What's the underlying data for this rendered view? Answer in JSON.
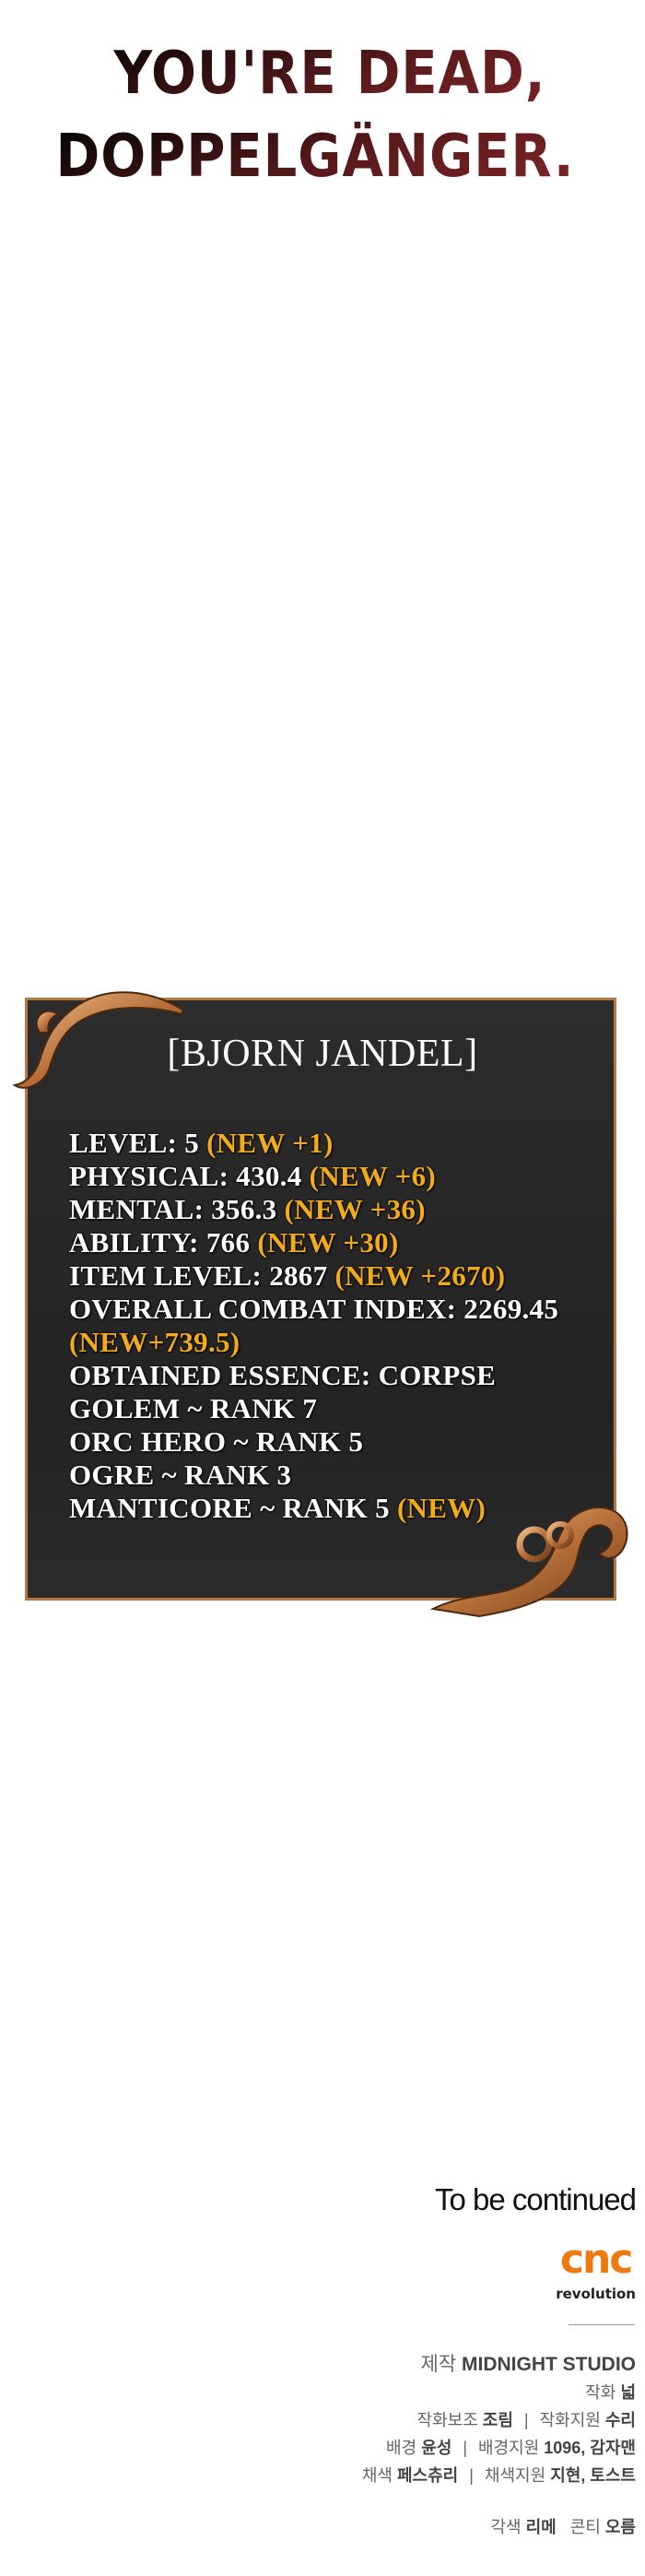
{
  "title": {
    "line1": "YOU'RE DEAD,",
    "line2": "DOPPELGÄNGER."
  },
  "status_window": {
    "name": "[BJORN JANDEL]",
    "lines": [
      {
        "text": "LEVEL: 5 ",
        "new": "(NEW +1)"
      },
      {
        "text": "PHYSICAL: 430.4 ",
        "new": "(NEW +6)"
      },
      {
        "text": "MENTAL: 356.3 ",
        "new": "(NEW +36)"
      },
      {
        "text": "ABILITY: 766 ",
        "new": "(NEW +30)"
      },
      {
        "text": "ITEM LEVEL: 2867 ",
        "new": "(NEW +2670)"
      },
      {
        "text": "OVERALL COMBAT INDEX: 2269.45",
        "new": ""
      },
      {
        "text": "",
        "new": "(NEW+739.5)"
      },
      {
        "text": "OBTAINED ESSENCE: CORPSE",
        "new": ""
      },
      {
        "text": "GOLEM ~ RANK 7",
        "new": ""
      },
      {
        "text": "ORC HERO ~ RANK 5",
        "new": ""
      },
      {
        "text": "OGRE ~ RANK 3",
        "new": ""
      },
      {
        "text": "MANTICORE ~ RANK 5 ",
        "new": "(NEW)"
      }
    ],
    "colors": {
      "highlight": "#f2ab1b",
      "frame": "#b07a4b",
      "background": "#262626"
    }
  },
  "footer": {
    "to_be_continued": "To be continued",
    "logo": {
      "mark": "cnc",
      "text": "revolution",
      "color": "#ee7a0f"
    },
    "credits": {
      "production_label": "제작",
      "production": "MIDNIGHT STUDIO",
      "art_label": "작화",
      "art": "넓",
      "art_assist_label": "작화보조",
      "art_assist": "조림",
      "art_support_label": "작화지원",
      "art_support": "수리",
      "bg_label": "배경",
      "bg": "윤성",
      "bg_support_label": "배경지원",
      "bg_support": "1096, 감자맨",
      "color_label": "채색",
      "color": "페스츄리",
      "color_support_label": "채색지원",
      "color_support": "지현, 토스트",
      "adapt_label": "각색",
      "adapt": "리메",
      "storyboard_label": "콘티",
      "storyboard": "오름",
      "separator": "|"
    }
  }
}
